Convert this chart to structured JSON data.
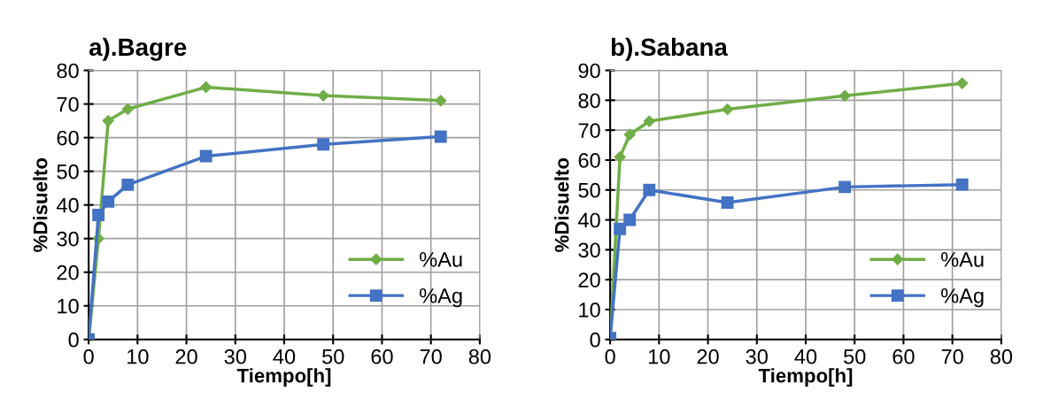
{
  "chart_data": [
    {
      "type": "line",
      "title": "a).Bagre",
      "xlabel": "Tiempo[h]",
      "ylabel": "%Disuelto",
      "xlim": [
        0,
        80
      ],
      "xticks": [
        0,
        10,
        20,
        30,
        40,
        50,
        60,
        70,
        80
      ],
      "ylim": [
        0,
        80
      ],
      "yticks": [
        0,
        10,
        20,
        30,
        40,
        50,
        60,
        70,
        80
      ],
      "grid": true,
      "legend": "lower right",
      "series": [
        {
          "name": "%Au",
          "color": "#70ad47",
          "marker": "diamond",
          "x": [
            0,
            2,
            4,
            8,
            24,
            48,
            72
          ],
          "values": [
            0,
            30,
            65,
            68.5,
            75,
            72.5,
            71
          ]
        },
        {
          "name": "%Ag",
          "color": "#4472c4",
          "marker": "square",
          "x": [
            0,
            2,
            4,
            8,
            24,
            48,
            72
          ],
          "values": [
            0,
            37,
            41,
            46,
            54.5,
            58,
            60.3
          ]
        }
      ]
    },
    {
      "type": "line",
      "title": "b).Sabana",
      "xlabel": "Tiempo[h]",
      "ylabel": "%Disuelto",
      "xlim": [
        0,
        80
      ],
      "xticks": [
        0,
        10,
        20,
        30,
        40,
        50,
        60,
        70,
        80
      ],
      "ylim": [
        0,
        90
      ],
      "yticks": [
        0,
        10,
        20,
        30,
        40,
        50,
        60,
        70,
        80,
        90
      ],
      "grid": true,
      "legend": "lower right",
      "series": [
        {
          "name": "%Au",
          "color": "#70ad47",
          "marker": "diamond",
          "x": [
            0,
            2,
            4,
            8,
            24,
            48,
            72
          ],
          "values": [
            0,
            61,
            68.5,
            73,
            77,
            81.5,
            85.7
          ]
        },
        {
          "name": "%Ag",
          "color": "#4472c4",
          "marker": "square",
          "x": [
            0,
            2,
            4,
            8,
            24,
            48,
            72
          ],
          "values": [
            0.5,
            37,
            40,
            50,
            45.8,
            51,
            51.8
          ]
        }
      ]
    }
  ]
}
